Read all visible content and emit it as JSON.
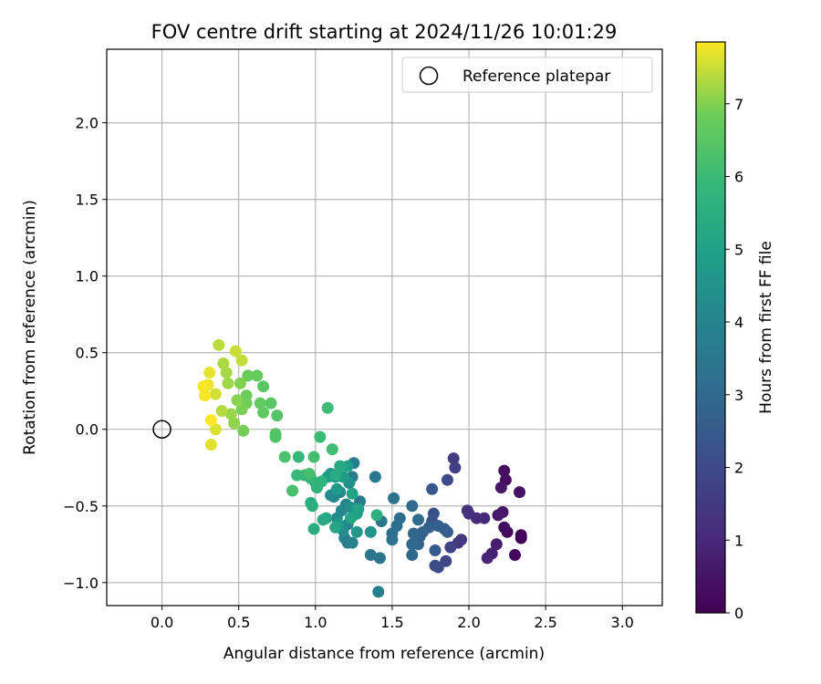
{
  "chart_data": {
    "type": "scatter",
    "title": "FOV centre drift starting at 2024/11/26 10:01:29",
    "xlabel": "Angular distance from reference (arcmin)",
    "ylabel": "Rotation from reference (arcmin)",
    "xlim": [
      -0.36,
      3.26
    ],
    "ylim": [
      -1.15,
      2.48
    ],
    "xticks": [
      0.0,
      0.5,
      1.0,
      1.5,
      2.0,
      2.5,
      3.0
    ],
    "xtick_labels": [
      "0.0",
      "0.5",
      "1.0",
      "1.5",
      "2.0",
      "2.5",
      "3.0"
    ],
    "yticks": [
      -1.0,
      -0.5,
      0.0,
      0.5,
      1.0,
      1.5,
      2.0
    ],
    "ytick_labels": [
      "−1.0",
      "−0.5",
      "0.0",
      "0.5",
      "1.0",
      "1.5",
      "2.0"
    ],
    "grid": true,
    "legend": {
      "placement": "upper right",
      "entries": [
        "Reference platepar"
      ]
    },
    "reference_point": {
      "x": 0.0,
      "y": 0.0
    },
    "colorbar": {
      "label": "Hours from first FF file",
      "colormap": "viridis",
      "range": [
        0,
        7.85
      ],
      "ticks": [
        0,
        1,
        2,
        3,
        4,
        5,
        6,
        7
      ],
      "tick_labels": [
        "0",
        "1",
        "2",
        "3",
        "4",
        "5",
        "6",
        "7"
      ]
    },
    "series": [
      {
        "points": [
          {
            "x": 2.34,
            "y": -0.71,
            "t": 0.0
          },
          {
            "x": 2.34,
            "y": -0.69,
            "t": 0.1
          },
          {
            "x": 2.3,
            "y": -0.82,
            "t": 0.15
          },
          {
            "x": 2.25,
            "y": -0.67,
            "t": 0.2
          },
          {
            "x": 2.23,
            "y": -0.64,
            "t": 0.3
          },
          {
            "x": 2.24,
            "y": -0.33,
            "t": 0.35
          },
          {
            "x": 2.23,
            "y": -0.27,
            "t": 0.4
          },
          {
            "x": 2.33,
            "y": -0.41,
            "t": 0.45
          },
          {
            "x": 2.22,
            "y": -0.54,
            "t": 0.5
          },
          {
            "x": 2.21,
            "y": -0.38,
            "t": 0.55
          },
          {
            "x": 2.19,
            "y": -0.56,
            "t": 0.6
          },
          {
            "x": 2.18,
            "y": -0.75,
            "t": 0.7
          },
          {
            "x": 2.15,
            "y": -0.81,
            "t": 0.8
          },
          {
            "x": 2.12,
            "y": -0.84,
            "t": 0.9
          },
          {
            "x": 2.1,
            "y": -0.58,
            "t": 1.0
          },
          {
            "x": 2.05,
            "y": -0.58,
            "t": 1.1
          },
          {
            "x": 2.0,
            "y": -0.55,
            "t": 1.2
          },
          {
            "x": 1.99,
            "y": -0.53,
            "t": 1.3
          },
          {
            "x": 1.95,
            "y": -0.72,
            "t": 1.4
          },
          {
            "x": 1.93,
            "y": -0.74,
            "t": 1.5
          },
          {
            "x": 1.9,
            "y": -0.19,
            "t": 1.6
          },
          {
            "x": 1.91,
            "y": -0.25,
            "t": 1.7
          },
          {
            "x": 1.88,
            "y": -0.77,
            "t": 1.8
          },
          {
            "x": 1.85,
            "y": -0.86,
            "t": 1.9
          },
          {
            "x": 1.86,
            "y": -0.33,
            "t": 2.0
          },
          {
            "x": 1.8,
            "y": -0.9,
            "t": 2.05
          },
          {
            "x": 1.78,
            "y": -0.89,
            "t": 2.1
          },
          {
            "x": 1.77,
            "y": -0.55,
            "t": 2.2
          },
          {
            "x": 1.76,
            "y": -0.6,
            "t": 2.3
          },
          {
            "x": 1.76,
            "y": -0.39,
            "t": 2.4
          },
          {
            "x": 1.78,
            "y": -0.79,
            "t": 2.5
          },
          {
            "x": 1.84,
            "y": -0.65,
            "t": 2.55
          },
          {
            "x": 1.86,
            "y": -0.67,
            "t": 2.6
          },
          {
            "x": 1.8,
            "y": -0.63,
            "t": 2.65
          },
          {
            "x": 1.74,
            "y": -0.64,
            "t": 2.7
          },
          {
            "x": 1.7,
            "y": -0.67,
            "t": 2.75
          },
          {
            "x": 1.68,
            "y": -0.7,
            "t": 2.8
          },
          {
            "x": 1.67,
            "y": -0.75,
            "t": 2.85
          },
          {
            "x": 1.64,
            "y": -0.68,
            "t": 2.9
          },
          {
            "x": 1.63,
            "y": -0.75,
            "t": 2.95
          },
          {
            "x": 1.63,
            "y": -0.82,
            "t": 3.0
          },
          {
            "x": 1.63,
            "y": -0.5,
            "t": 3.05
          },
          {
            "x": 1.67,
            "y": -0.59,
            "t": 3.1
          },
          {
            "x": 1.55,
            "y": -0.58,
            "t": 3.15
          },
          {
            "x": 1.53,
            "y": -0.63,
            "t": 3.2
          },
          {
            "x": 1.5,
            "y": -0.68,
            "t": 3.25
          },
          {
            "x": 1.5,
            "y": -0.72,
            "t": 3.3
          },
          {
            "x": 1.51,
            "y": -0.45,
            "t": 3.35
          },
          {
            "x": 1.43,
            "y": -0.6,
            "t": 3.4
          },
          {
            "x": 1.42,
            "y": -0.84,
            "t": 3.45
          },
          {
            "x": 1.36,
            "y": -0.82,
            "t": 3.5
          },
          {
            "x": 1.39,
            "y": -0.31,
            "t": 3.55
          },
          {
            "x": 1.29,
            "y": -0.47,
            "t": 3.6
          },
          {
            "x": 1.25,
            "y": -0.22,
            "t": 3.65
          },
          {
            "x": 1.24,
            "y": -0.31,
            "t": 3.7
          },
          {
            "x": 1.21,
            "y": -0.74,
            "t": 3.75
          },
          {
            "x": 1.19,
            "y": -0.71,
            "t": 3.8
          },
          {
            "x": 1.21,
            "y": -0.62,
            "t": 3.85
          },
          {
            "x": 1.41,
            "y": -1.06,
            "t": 3.9
          },
          {
            "x": 1.24,
            "y": -0.74,
            "t": 3.95
          },
          {
            "x": 1.2,
            "y": -0.49,
            "t": 4.0
          },
          {
            "x": 1.17,
            "y": -0.53,
            "t": 4.05
          },
          {
            "x": 1.16,
            "y": -0.41,
            "t": 4.1
          },
          {
            "x": 1.12,
            "y": -0.44,
            "t": 4.15
          },
          {
            "x": 1.1,
            "y": -0.43,
            "t": 4.2
          },
          {
            "x": 1.14,
            "y": -0.58,
            "t": 4.25
          },
          {
            "x": 1.18,
            "y": -0.66,
            "t": 4.3
          },
          {
            "x": 1.25,
            "y": -0.56,
            "t": 4.35
          },
          {
            "x": 1.23,
            "y": -0.51,
            "t": 4.4
          },
          {
            "x": 1.22,
            "y": -0.35,
            "t": 4.45
          },
          {
            "x": 1.13,
            "y": -0.31,
            "t": 4.5
          },
          {
            "x": 1.1,
            "y": -0.29,
            "t": 4.55
          },
          {
            "x": 1.36,
            "y": -0.67,
            "t": 4.6
          },
          {
            "x": 1.27,
            "y": -0.67,
            "t": 4.65
          },
          {
            "x": 1.26,
            "y": -0.55,
            "t": 4.7
          },
          {
            "x": 1.15,
            "y": -0.62,
            "t": 4.75
          },
          {
            "x": 1.14,
            "y": -0.39,
            "t": 4.8
          },
          {
            "x": 1.18,
            "y": -0.31,
            "t": 4.85
          },
          {
            "x": 1.21,
            "y": -0.24,
            "t": 4.9
          },
          {
            "x": 1.08,
            "y": -0.31,
            "t": 4.95
          },
          {
            "x": 1.27,
            "y": -0.55,
            "t": 5.0
          },
          {
            "x": 1.28,
            "y": -0.52,
            "t": 5.05
          },
          {
            "x": 1.24,
            "y": -0.42,
            "t": 5.1
          },
          {
            "x": 1.23,
            "y": -0.58,
            "t": 5.15
          },
          {
            "x": 1.13,
            "y": -0.64,
            "t": 5.2
          },
          {
            "x": 1.07,
            "y": -0.58,
            "t": 5.25
          },
          {
            "x": 1.05,
            "y": -0.59,
            "t": 5.3
          },
          {
            "x": 1.16,
            "y": -0.24,
            "t": 5.35
          },
          {
            "x": 1.13,
            "y": -0.3,
            "t": 5.4
          },
          {
            "x": 0.99,
            "y": -0.65,
            "t": 5.45
          },
          {
            "x": 0.98,
            "y": -0.5,
            "t": 5.5
          },
          {
            "x": 0.97,
            "y": -0.48,
            "t": 5.55
          },
          {
            "x": 1.4,
            "y": -0.56,
            "t": 5.6
          },
          {
            "x": 1.04,
            "y": -0.34,
            "t": 5.65
          },
          {
            "x": 1.01,
            "y": -0.38,
            "t": 5.7
          },
          {
            "x": 1.0,
            "y": -0.35,
            "t": 5.75
          },
          {
            "x": 0.97,
            "y": -0.32,
            "t": 5.8
          },
          {
            "x": 0.93,
            "y": -0.3,
            "t": 5.85
          },
          {
            "x": 0.89,
            "y": -0.18,
            "t": 5.9
          },
          {
            "x": 0.88,
            "y": -0.3,
            "t": 5.95
          },
          {
            "x": 1.03,
            "y": -0.05,
            "t": 6.0
          },
          {
            "x": 1.08,
            "y": 0.14,
            "t": 6.05
          },
          {
            "x": 1.11,
            "y": -0.13,
            "t": 6.1
          },
          {
            "x": 0.99,
            "y": -0.18,
            "t": 6.15
          },
          {
            "x": 0.96,
            "y": -0.29,
            "t": 6.2
          },
          {
            "x": 0.85,
            "y": -0.4,
            "t": 6.25
          },
          {
            "x": 0.8,
            "y": -0.18,
            "t": 6.3
          },
          {
            "x": 0.74,
            "y": -0.05,
            "t": 6.35
          },
          {
            "x": 0.74,
            "y": -0.03,
            "t": 6.4
          },
          {
            "x": 0.75,
            "y": 0.09,
            "t": 6.45
          },
          {
            "x": 0.71,
            "y": 0.17,
            "t": 6.5
          },
          {
            "x": 0.66,
            "y": 0.28,
            "t": 6.55
          },
          {
            "x": 0.66,
            "y": 0.11,
            "t": 6.6
          },
          {
            "x": 0.64,
            "y": 0.17,
            "t": 6.65
          },
          {
            "x": 0.62,
            "y": 0.35,
            "t": 6.7
          },
          {
            "x": 0.56,
            "y": 0.35,
            "t": 6.75
          },
          {
            "x": 0.55,
            "y": 0.22,
            "t": 6.8
          },
          {
            "x": 0.55,
            "y": 0.17,
            "t": 6.85
          },
          {
            "x": 0.53,
            "y": -0.01,
            "t": 6.9
          },
          {
            "x": 0.52,
            "y": 0.13,
            "t": 6.95
          },
          {
            "x": 0.51,
            "y": 0.3,
            "t": 7.0
          },
          {
            "x": 0.49,
            "y": 0.19,
            "t": 7.05
          },
          {
            "x": 0.47,
            "y": 0.04,
            "t": 7.1
          },
          {
            "x": 0.45,
            "y": 0.1,
            "t": 7.15
          },
          {
            "x": 0.43,
            "y": 0.3,
            "t": 7.2
          },
          {
            "x": 0.42,
            "y": 0.37,
            "t": 7.25
          },
          {
            "x": 0.4,
            "y": 0.43,
            "t": 7.3
          },
          {
            "x": 0.39,
            "y": 0.12,
            "t": 7.35
          },
          {
            "x": 0.37,
            "y": 0.55,
            "t": 7.4
          },
          {
            "x": 0.52,
            "y": 0.45,
            "t": 7.45
          },
          {
            "x": 0.48,
            "y": 0.51,
            "t": 7.5
          },
          {
            "x": 0.35,
            "y": 0.23,
            "t": 7.55
          },
          {
            "x": 0.35,
            "y": 0.0,
            "t": 7.6
          },
          {
            "x": 0.32,
            "y": -0.1,
            "t": 7.65
          },
          {
            "x": 0.31,
            "y": 0.37,
            "t": 7.7
          },
          {
            "x": 0.3,
            "y": 0.29,
            "t": 7.75
          },
          {
            "x": 0.28,
            "y": 0.22,
            "t": 7.8
          },
          {
            "x": 0.27,
            "y": 0.28,
            "t": 7.82
          },
          {
            "x": 0.32,
            "y": 0.06,
            "t": 7.85
          }
        ]
      }
    ]
  }
}
